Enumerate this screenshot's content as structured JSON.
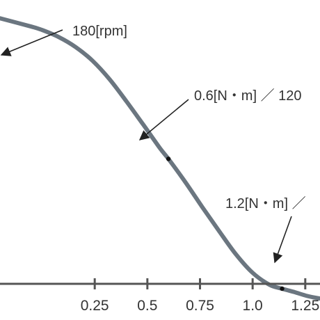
{
  "chart_data": {
    "type": "line",
    "title": "",
    "xlabel": "",
    "ylabel": "",
    "xlim": [
      -0.2,
      1.32
    ],
    "ylim": [
      0,
      192
    ],
    "grid": false,
    "legend": "none",
    "x_ticks": [
      {
        "value": 0.25,
        "label": "0.25"
      },
      {
        "value": 0.5,
        "label": "0.5"
      },
      {
        "value": 0.75,
        "label": "0.75"
      },
      {
        "value": 1.0,
        "label": "1.0"
      },
      {
        "value": 1.25,
        "label": "1.25"
      }
    ],
    "series": [
      {
        "color": "#6b7680",
        "x": [
          -0.2,
          -0.05,
          0.0,
          0.08,
          0.16,
          0.24,
          0.32,
          0.4,
          0.48,
          0.56,
          0.6,
          0.68,
          0.76,
          0.84,
          0.92,
          1.0,
          1.08,
          1.14,
          1.2,
          1.26,
          1.32
        ],
        "y": [
          180,
          174.5,
          172.3,
          167.6,
          161.0,
          152.0,
          140.0,
          125.5,
          110.2,
          94.6,
          87.6,
          72.4,
          56.1,
          40.3,
          25.0,
          12.7,
          4.9,
          2.3,
          0.0,
          -2.5,
          -4.2
        ]
      }
    ],
    "annotations": [
      {
        "text": "180[rpm]",
        "x": 0.0,
        "y": 172.3,
        "marker": false
      },
      {
        "text": "0.6[N・m] ／ 120",
        "x": 0.6,
        "y": 87.6,
        "marker": true
      },
      {
        "text": "1.2[N・m] ／",
        "x": 1.14,
        "y": 2.3,
        "marker": true
      }
    ],
    "axis_color": "#555555",
    "annotation_color": "#222222"
  }
}
